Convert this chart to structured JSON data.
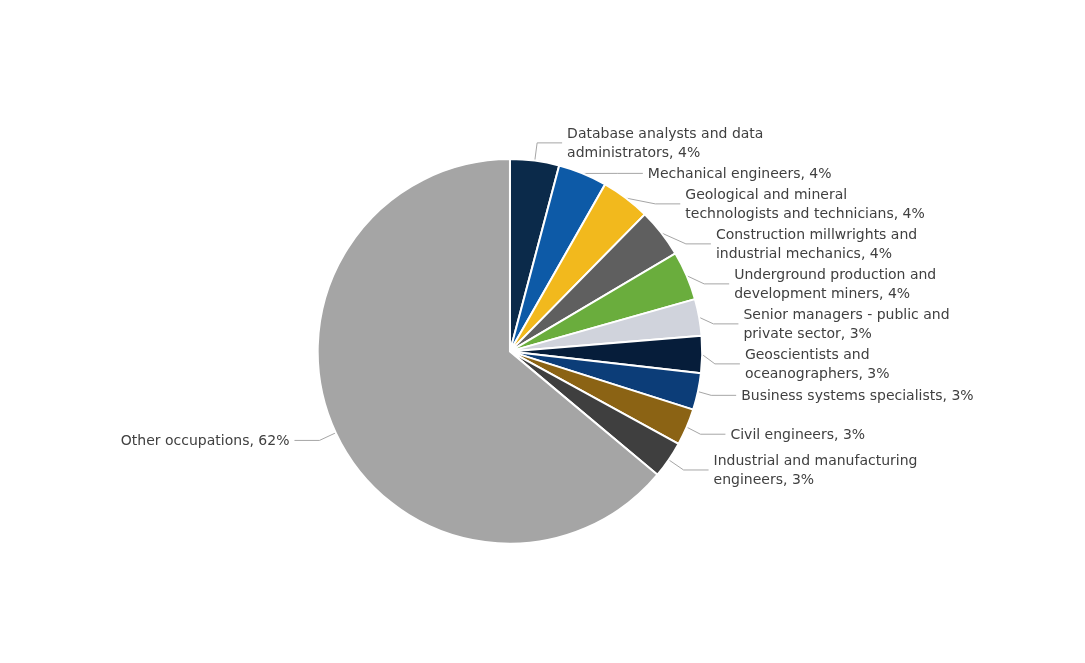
{
  "chart_data": {
    "type": "pie",
    "categories": [
      "Database analysts and data administrators",
      "Mechanical engineers",
      "Geological and mineral technologists and technicians",
      "Construction millwrights and industrial mechanics",
      "Underground production and development miners",
      "Senior managers - public and private sector",
      "Geoscientists and oceanographers",
      "Business systems specialists",
      "Civil engineers",
      "Industrial and manufacturing engineers",
      "Other occupations"
    ],
    "values": [
      4,
      4,
      4,
      4,
      4,
      3,
      3,
      3,
      3,
      3,
      62
    ],
    "value_labels": [
      "4%",
      "4%",
      "4%",
      "4%",
      "4%",
      "3%",
      "3%",
      "3%",
      "3%",
      "3%",
      "62%"
    ],
    "colors": [
      "#0b2a4a",
      "#0d5aa7",
      "#f2b91d",
      "#5f5f5f",
      "#6aad3d",
      "#d0d3dc",
      "#061d3a",
      "#0c3d78",
      "#8b6314",
      "#3f3f3f",
      "#a5a5a5"
    ],
    "legend": false
  }
}
